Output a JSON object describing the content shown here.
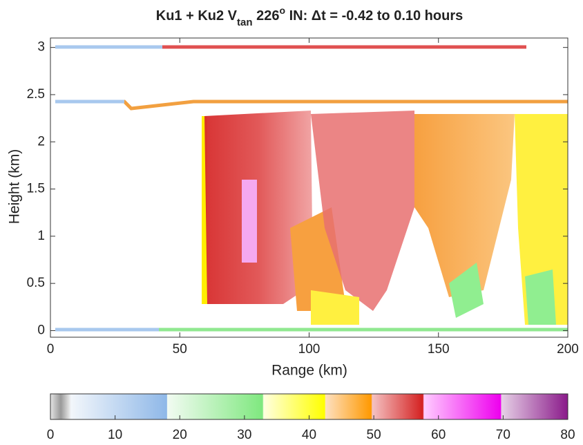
{
  "chart_data": {
    "type": "heatmap",
    "title_parts": [
      "Ku1 + Ku2  V",
      "tan",
      " 226",
      "o",
      " IN: Δt = -0.42 to 0.10 hours"
    ],
    "x_label": "Range (km)",
    "y_label": "Height (km)",
    "xlim": [
      0,
      200
    ],
    "xticks": [
      0,
      50,
      100,
      150,
      200
    ],
    "ylim": [
      -0.07,
      3.1
    ],
    "yticks": [
      0,
      0.5,
      1,
      1.5,
      2,
      2.5,
      3
    ],
    "colorbar": {
      "lim": [
        0,
        80
      ],
      "ticks": [
        0,
        10,
        20,
        30,
        40,
        50,
        60,
        70,
        80
      ]
    }
  }
}
